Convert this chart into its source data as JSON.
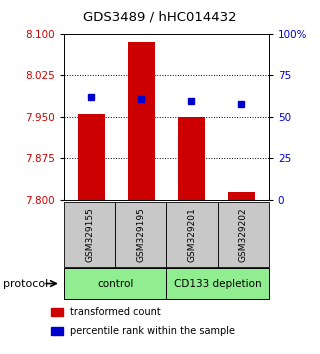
{
  "title": "GDS3489 / hHC014432",
  "samples": [
    "GSM329155",
    "GSM329195",
    "GSM329201",
    "GSM329202"
  ],
  "bar_values": [
    7.955,
    8.085,
    7.95,
    7.815
  ],
  "marker_values": [
    7.986,
    7.982,
    7.979,
    7.974
  ],
  "bar_color": "#cc0000",
  "marker_color": "#0000cc",
  "ylim_left": [
    7.8,
    8.1
  ],
  "ylim_right": [
    0,
    100
  ],
  "yticks_left": [
    7.8,
    7.875,
    7.95,
    8.025,
    8.1
  ],
  "yticks_right": [
    0,
    25,
    50,
    75,
    100
  ],
  "ytick_labels_right": [
    "0",
    "25",
    "50",
    "75",
    "100%"
  ],
  "hlines": [
    7.875,
    7.95,
    8.025
  ],
  "groups": [
    {
      "label": "control",
      "spans": [
        0,
        2
      ],
      "color": "#90ee90"
    },
    {
      "label": "CD133 depletion",
      "spans": [
        2,
        4
      ],
      "color": "#90ee90"
    }
  ],
  "protocol_label": "protocol",
  "legend": [
    {
      "color": "#cc0000",
      "label": "transformed count"
    },
    {
      "color": "#0000cc",
      "label": "percentile rank within the sample"
    }
  ],
  "bar_width": 0.55,
  "sample_box_color": "#c8c8c8",
  "fig_width": 3.2,
  "fig_height": 3.54,
  "dpi": 100
}
